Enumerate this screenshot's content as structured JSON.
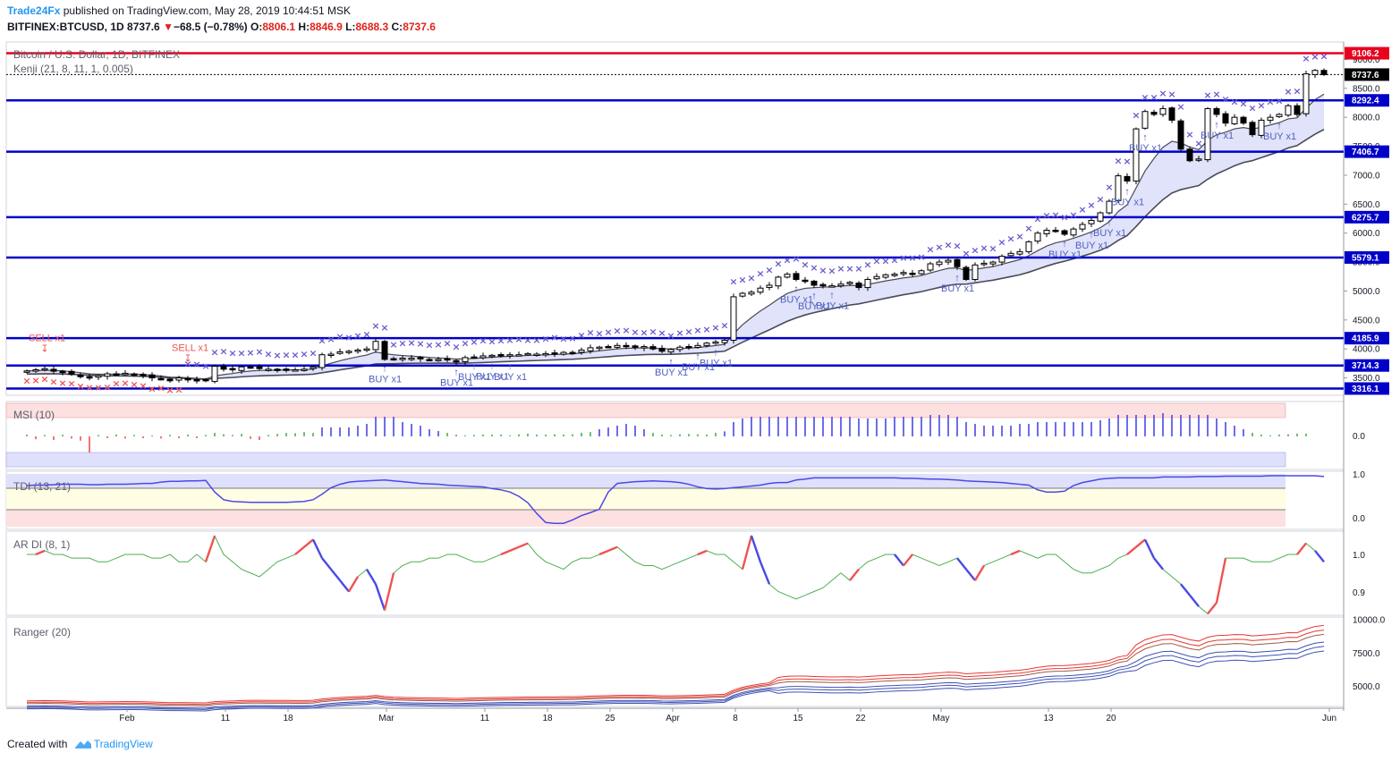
{
  "header": {
    "brand": "Trade24Fx",
    "published": "published on TradingView.com, May 28, 2019 10:44:51 MSK",
    "symbol": "BITFINEX:BTCUSD, 1D",
    "last": "8737.6",
    "change_arrow": "▼",
    "change": "−68.5 (−0.78%)",
    "o_label": "O:",
    "o_value": "8806.1",
    "h_label": "H:",
    "h_value": "8846.9",
    "l_label": "L:",
    "l_value": "8688.3",
    "c_label": "C:",
    "c_value": "8737.6"
  },
  "footer": {
    "created_with": "Created with",
    "brand": "TradingView"
  },
  "colors": {
    "red_line": "#e8001d",
    "blue_line": "#0000c8",
    "cross": "#6a5acd",
    "sell_cross": "#ef5350",
    "cloud": "#d6daf7",
    "bull": "#ffffff",
    "bear": "#000000",
    "ranger_red": "#e53935",
    "ranger_blue": "#3f51b5",
    "ardi_green": "#4caf50"
  },
  "chart_data": [
    {
      "type": "candlestick",
      "title": "Bitcoin / U.S. Dollar, 1D, BITFINEX",
      "indicator": "Kenji (21, 8, 11, 1, 0.005)",
      "ylim": [
        3200,
        9300
      ],
      "y_ticks": [
        3500,
        4000,
        4500,
        5000,
        5500,
        6000,
        6500,
        7000,
        7500,
        8000,
        8500,
        9000
      ],
      "y_tick_labels": [
        "3500.0",
        "4000.0",
        "4500.0",
        "5000.0",
        "5500.0",
        "6000.0",
        "6500.0",
        "7000.0",
        "7500.0",
        "8000.0",
        "8500.0",
        "9000.0"
      ],
      "x_labels": [
        "Feb",
        "11",
        "18",
        "Mar",
        "11",
        "18",
        "25",
        "Apr",
        "8",
        "15",
        "22",
        "May",
        "13",
        "20",
        "Jun"
      ],
      "levels": [
        {
          "value": 9106.2,
          "label": "9106.2",
          "color": "#e8001d"
        },
        {
          "value": 8737.6,
          "label": "8737.6",
          "color": "#000000",
          "dotted": true
        },
        {
          "value": 8292.4,
          "label": "8292.4",
          "color": "#0000c8"
        },
        {
          "value": 7406.7,
          "label": "7406.7",
          "color": "#0000c8"
        },
        {
          "value": 6275.7,
          "label": "6275.7",
          "color": "#0000c8"
        },
        {
          "value": 5579.1,
          "label": "5579.1",
          "color": "#0000c8"
        },
        {
          "value": 4185.9,
          "label": "4185.9",
          "color": "#0000c8"
        },
        {
          "value": 3714.3,
          "label": "3714.3",
          "color": "#0000c8"
        },
        {
          "value": 3316.1,
          "label": "3316.1",
          "color": "#0000c8"
        }
      ],
      "closes": [
        3620,
        3640,
        3660,
        3615,
        3600,
        3560,
        3520,
        3500,
        3540,
        3570,
        3560,
        3580,
        3560,
        3540,
        3500,
        3480,
        3450,
        3500,
        3470,
        3460,
        3450,
        3700,
        3650,
        3640,
        3690,
        3680,
        3660,
        3650,
        3640,
        3650,
        3640,
        3650,
        3690,
        3900,
        3910,
        3950,
        3960,
        3980,
        4000,
        4130,
        3820,
        3830,
        3840,
        3840,
        3830,
        3810,
        3820,
        3810,
        3780,
        3850,
        3860,
        3880,
        3890,
        3900,
        3900,
        3900,
        3920,
        3910,
        3920,
        3920,
        3940,
        3930,
        3980,
        4020,
        4030,
        4040,
        4060,
        4040,
        4030,
        4040,
        4000,
        3960,
        3990,
        4030,
        4040,
        4060,
        4100,
        4120,
        4150,
        4900,
        4960,
        4980,
        5050,
        5100,
        5240,
        5290,
        5200,
        5170,
        5100,
        5100,
        5090,
        5120,
        5150,
        5060,
        5200,
        5250,
        5280,
        5290,
        5320,
        5300,
        5350,
        5470,
        5500,
        5530,
        5420,
        5200,
        5450,
        5480,
        5500,
        5600,
        5650,
        5680,
        5850,
        6000,
        6050,
        6030,
        5980,
        6070,
        6150,
        6220,
        6350,
        6550,
        6990,
        6900,
        7800,
        8100,
        8050,
        8150,
        7950,
        7450,
        7250,
        7280,
        8150,
        8050,
        7900,
        8000,
        7900,
        7700,
        7950,
        8000,
        8050,
        8200,
        8050,
        8750,
        8810,
        8737.6
      ],
      "cross_labels": [
        {
          "day": 2,
          "text": "SELL x1",
          "kind": "sell",
          "pos": "above"
        },
        {
          "day": 18,
          "text": "SELL x1",
          "kind": "sell",
          "pos": "above"
        },
        {
          "day": 40,
          "text": "BUY x1",
          "kind": "buy",
          "pos": "below"
        },
        {
          "day": 48,
          "text": "BUY x1",
          "kind": "buy",
          "pos": "below"
        },
        {
          "day": 50,
          "text": "BUY x1",
          "kind": "buy",
          "pos": "below"
        },
        {
          "day": 52,
          "text": "BUY x1",
          "kind": "buy",
          "pos": "below"
        },
        {
          "day": 54,
          "text": "BUY x1",
          "kind": "buy",
          "pos": "below"
        },
        {
          "day": 72,
          "text": "BUY x1",
          "kind": "buy",
          "pos": "below"
        },
        {
          "day": 75,
          "text": "BUY x1",
          "kind": "buy",
          "pos": "below"
        },
        {
          "day": 77,
          "text": "BUY x1",
          "kind": "buy",
          "pos": "below"
        },
        {
          "day": 86,
          "text": "BUY x1",
          "kind": "buy",
          "pos": "below"
        },
        {
          "day": 88,
          "text": "BUY x1",
          "kind": "buy",
          "pos": "below"
        },
        {
          "day": 90,
          "text": "BUY x1",
          "kind": "buy",
          "pos": "below"
        },
        {
          "day": 104,
          "text": "BUY x1",
          "kind": "buy",
          "pos": "below"
        },
        {
          "day": 116,
          "text": "BUY x1",
          "kind": "buy",
          "pos": "below"
        },
        {
          "day": 119,
          "text": "BUY x1",
          "kind": "buy",
          "pos": "below"
        },
        {
          "day": 121,
          "text": "BUY x1",
          "kind": "buy",
          "pos": "below"
        },
        {
          "day": 123,
          "text": "BUY x1",
          "kind": "buy",
          "pos": "below"
        },
        {
          "day": 125,
          "text": "BUY x1",
          "kind": "buy",
          "pos": "below"
        },
        {
          "day": 133,
          "text": "BUY x1",
          "kind": "buy",
          "pos": "below"
        },
        {
          "day": 140,
          "text": "BUY x1",
          "kind": "buy",
          "pos": "below"
        }
      ]
    },
    {
      "type": "bar",
      "title": "MSI (10)",
      "ylim": [
        -1,
        1
      ],
      "y_tick_labels": [
        "0.0"
      ],
      "values": [
        0.05,
        -0.08,
        0.04,
        -0.1,
        0.05,
        -0.06,
        -0.12,
        -0.45,
        0.04,
        -0.05,
        0.05,
        -0.06,
        0.04,
        -0.05,
        0.03,
        -0.06,
        0.04,
        -0.05,
        0.05,
        -0.05,
        0.04,
        0.1,
        0.06,
        0.04,
        0.07,
        -0.07,
        -0.1,
        0.04,
        0.07,
        0.1,
        0.09,
        0.12,
        0.1,
        0.25,
        0.25,
        0.25,
        0.25,
        0.3,
        0.35,
        0.55,
        0.55,
        0.55,
        0.4,
        0.35,
        0.3,
        0.2,
        0.15,
        0.1,
        0.05,
        0.03,
        0.04,
        0.05,
        0.05,
        0.05,
        0.03,
        0.06,
        0.08,
        0.05,
        0.05,
        0.06,
        0.05,
        0.06,
        0.1,
        0.12,
        0.2,
        0.25,
        0.3,
        0.35,
        0.3,
        0.2,
        0.1,
        0.05,
        0.04,
        0.06,
        0.07,
        0.06,
        0.05,
        0.1,
        0.14,
        0.4,
        0.5,
        0.55,
        0.55,
        0.55,
        0.55,
        0.55,
        0.55,
        0.55,
        0.55,
        0.55,
        0.55,
        0.55,
        0.55,
        0.5,
        0.5,
        0.5,
        0.5,
        0.55,
        0.55,
        0.55,
        0.55,
        0.6,
        0.6,
        0.6,
        0.55,
        0.4,
        0.35,
        0.3,
        0.3,
        0.3,
        0.3,
        0.35,
        0.35,
        0.4,
        0.4,
        0.4,
        0.4,
        0.4,
        0.4,
        0.4,
        0.45,
        0.5,
        0.6,
        0.6,
        0.6,
        0.6,
        0.6,
        0.65,
        0.6,
        0.6,
        0.6,
        0.6,
        0.6,
        0.5,
        0.4,
        0.3,
        0.2,
        0.1,
        0.05,
        0.03,
        0.05,
        0.06,
        0.08,
        0.08
      ]
    },
    {
      "type": "line",
      "title": "TDI (13, 21)",
      "ylim": [
        -0.15,
        1.05
      ],
      "y_tick_labels": [
        "0.0",
        "1.0"
      ],
      "values": [
        0.75,
        0.76,
        0.76,
        0.77,
        0.78,
        0.78,
        0.78,
        0.77,
        0.77,
        0.78,
        0.78,
        0.78,
        0.79,
        0.8,
        0.8,
        0.83,
        0.85,
        0.85,
        0.86,
        0.86,
        0.87,
        0.6,
        0.42,
        0.38,
        0.37,
        0.36,
        0.36,
        0.36,
        0.36,
        0.36,
        0.37,
        0.38,
        0.42,
        0.55,
        0.7,
        0.78,
        0.83,
        0.85,
        0.86,
        0.87,
        0.88,
        0.86,
        0.84,
        0.82,
        0.8,
        0.79,
        0.78,
        0.76,
        0.75,
        0.74,
        0.73,
        0.72,
        0.68,
        0.65,
        0.6,
        0.5,
        0.35,
        0.1,
        -0.11,
        -0.13,
        -0.13,
        -0.05,
        0.05,
        0.12,
        0.2,
        0.6,
        0.8,
        0.82,
        0.84,
        0.85,
        0.86,
        0.85,
        0.84,
        0.82,
        0.78,
        0.72,
        0.68,
        0.67,
        0.68,
        0.7,
        0.72,
        0.74,
        0.76,
        0.8,
        0.82,
        0.82,
        0.88,
        0.9,
        0.93,
        0.93,
        0.93,
        0.93,
        0.93,
        0.93,
        0.93,
        0.93,
        0.93,
        0.93,
        0.92,
        0.92,
        0.91,
        0.9,
        0.9,
        0.89,
        0.88,
        0.86,
        0.85,
        0.84,
        0.83,
        0.82,
        0.8,
        0.78,
        0.76,
        0.65,
        0.6,
        0.6,
        0.62,
        0.75,
        0.82,
        0.86,
        0.9,
        0.92,
        0.93,
        0.93,
        0.93,
        0.93,
        0.93,
        0.95,
        0.95,
        0.95,
        0.95,
        0.96,
        0.96,
        0.96,
        0.97,
        0.97,
        0.97,
        0.97,
        0.97,
        0.98,
        0.98,
        0.98,
        0.98,
        0.98,
        0.98,
        0.96,
        0.96,
        0.95,
        0.95
      ]
    },
    {
      "type": "line",
      "title": "AR DI (8, 1)",
      "ylim": [
        0.83,
        1.1
      ],
      "y_tick_labels": [
        "0.9",
        "1.0"
      ],
      "values": [
        1.0,
        1.0,
        1.01,
        1.0,
        1.0,
        0.99,
        0.99,
        0.99,
        0.98,
        0.98,
        0.99,
        1.0,
        1.0,
        1.0,
        0.99,
        0.99,
        1.0,
        0.98,
        0.98,
        1.0,
        0.98,
        1.05,
        1.0,
        0.98,
        0.96,
        0.95,
        0.94,
        0.96,
        0.98,
        0.99,
        1.0,
        1.02,
        1.04,
        0.99,
        0.96,
        0.93,
        0.9,
        0.94,
        0.96,
        0.92,
        0.85,
        0.95,
        0.97,
        0.98,
        0.98,
        0.99,
        0.99,
        1.0,
        1.0,
        0.99,
        0.98,
        0.98,
        0.99,
        1.0,
        1.01,
        1.02,
        1.03,
        1.0,
        0.98,
        0.97,
        0.96,
        0.98,
        0.99,
        0.99,
        1.0,
        1.01,
        1.02,
        1.0,
        0.98,
        0.97,
        0.97,
        0.96,
        0.97,
        0.98,
        0.99,
        1.0,
        1.01,
        1.0,
        1.0,
        0.98,
        0.96,
        1.05,
        0.98,
        0.92,
        0.9,
        0.89,
        0.88,
        0.89,
        0.9,
        0.91,
        0.93,
        0.95,
        0.93,
        0.96,
        0.98,
        0.99,
        1.0,
        1.0,
        0.97,
        1.0,
        0.99,
        0.98,
        0.97,
        0.98,
        0.99,
        0.96,
        0.93,
        0.97,
        0.98,
        0.99,
        1.0,
        1.01,
        1.0,
        0.99,
        1.0,
        1.0,
        0.98,
        0.96,
        0.95,
        0.95,
        0.96,
        0.97,
        0.99,
        1.0,
        1.02,
        1.04,
        0.99,
        0.96,
        0.94,
        0.92,
        0.89,
        0.86,
        0.84,
        0.87,
        0.99,
        0.99,
        0.99,
        0.98,
        0.98,
        0.98,
        0.99,
        1.0,
        1.0,
        1.03,
        1.01,
        0.98,
        0.96
      ]
    },
    {
      "type": "line",
      "title": "Ranger (20)",
      "ylim": [
        3500,
        10200
      ],
      "y_tick_labels": [
        "5000.0",
        "7500.0",
        "10000.0"
      ],
      "series": [
        {
          "offset": 600,
          "color": "#e53935"
        },
        {
          "offset": 380,
          "color": "#e53935"
        },
        {
          "offset": 180,
          "color": "#9c5a48"
        },
        {
          "offset": -180,
          "color": "#3f51b5"
        },
        {
          "offset": -380,
          "color": "#3f51b5"
        },
        {
          "offset": -600,
          "color": "#3f51b5"
        }
      ]
    }
  ]
}
